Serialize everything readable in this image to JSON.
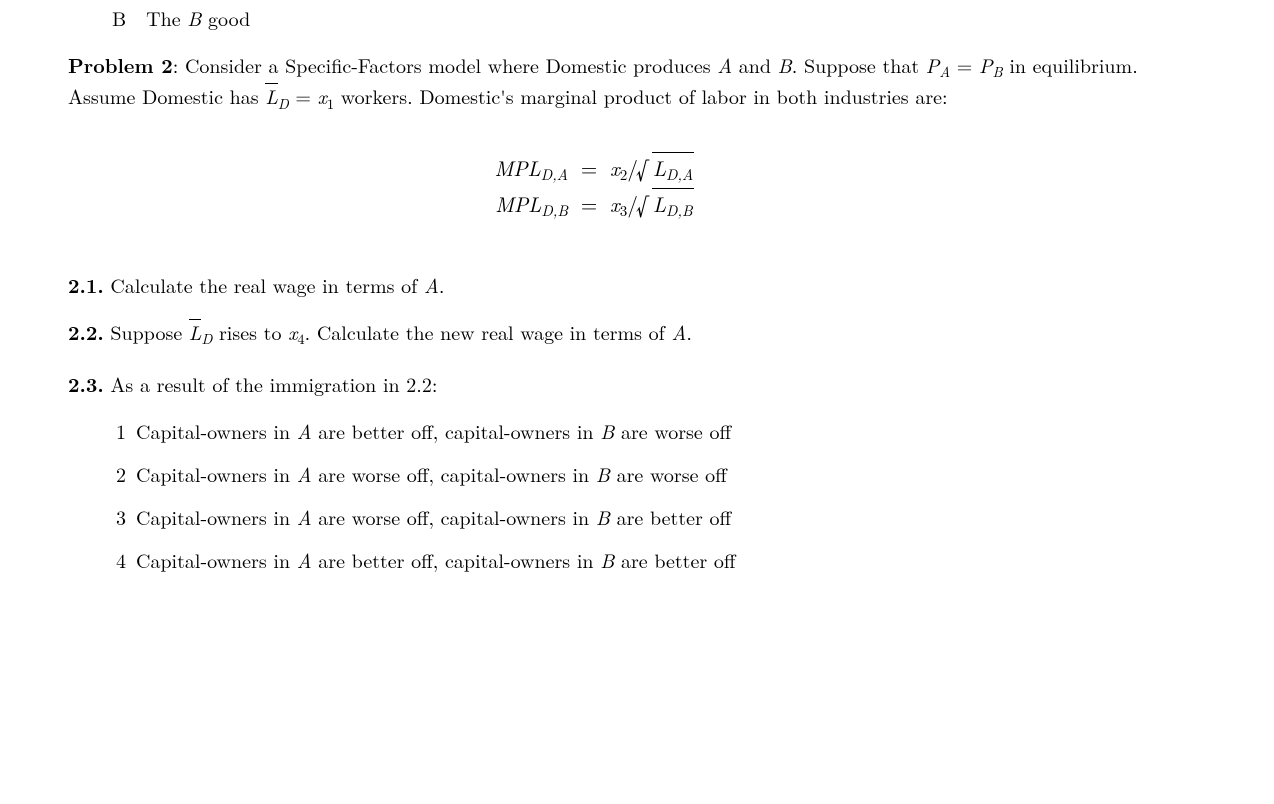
{
  "heading_b_letter": "B",
  "heading_b_text_pre": "The ",
  "heading_b_text_var": "B",
  "heading_b_text_post": " good",
  "prob2": {
    "label": "Problem 2",
    "text1": ": Consider a Specific-Factors model where Domestic produces ",
    "varA": "A",
    "and": " and ",
    "varB": "B",
    "text2": ". Suppose that ",
    "PA": "P",
    "PA_sub": "A",
    "eq1": " = ",
    "PB": "P",
    "PB_sub": "B",
    "text3": " in equilibrium. Assume Domestic has ",
    "Lbar": "L",
    "Lbar_sub": "D",
    "eq2": " = ",
    "x1": "x",
    "x1_sub": "1",
    "text4": " workers. Domestic's marginal product of labor in both industries are:"
  },
  "equations": {
    "mpl": "MPL",
    "row_a_sub": "D,A",
    "row_a_x": "x",
    "row_a_xnum": "2",
    "row_a_rad": "L",
    "row_a_rad_sub": "D,A",
    "row_b_sub": "D,B",
    "row_b_x": "x",
    "row_b_xnum": "3",
    "row_b_rad": "L",
    "row_b_rad_sub": "D,B",
    "eq": "=",
    "slash": "/"
  },
  "q21": {
    "label": "2.1.",
    "text1": " Calculate the real wage in terms of ",
    "varA": "A",
    "period": "."
  },
  "q22": {
    "label": "2.2.",
    "text1": " Suppose ",
    "Lbar": "L",
    "Lbar_sub": "D",
    "text2": " rises to ",
    "x4": "x",
    "x4_sub": "4",
    "text3": ". Calculate the new real wage in terms of ",
    "varA": "A",
    "period": "."
  },
  "q23": {
    "label": "2.3.",
    "text": " As a result of the immigration in 2.2:"
  },
  "choices": [
    {
      "n": "1",
      "pre": "Capital-owners in ",
      "a": "A",
      "mid": " are better off, capital-owners in ",
      "b": "B",
      "post": " are worse off"
    },
    {
      "n": "2",
      "pre": "Capital-owners in ",
      "a": "A",
      "mid": " are worse off, capital-owners in ",
      "b": "B",
      "post": " are worse off"
    },
    {
      "n": "3",
      "pre": "Capital-owners in ",
      "a": "A",
      "mid": " are worse off, capital-owners in ",
      "b": "B",
      "post": " are better off"
    },
    {
      "n": "4",
      "pre": "Capital-owners in ",
      "a": "A",
      "mid": " are better off, capital-owners in ",
      "b": "B",
      "post": " are better off"
    }
  ]
}
